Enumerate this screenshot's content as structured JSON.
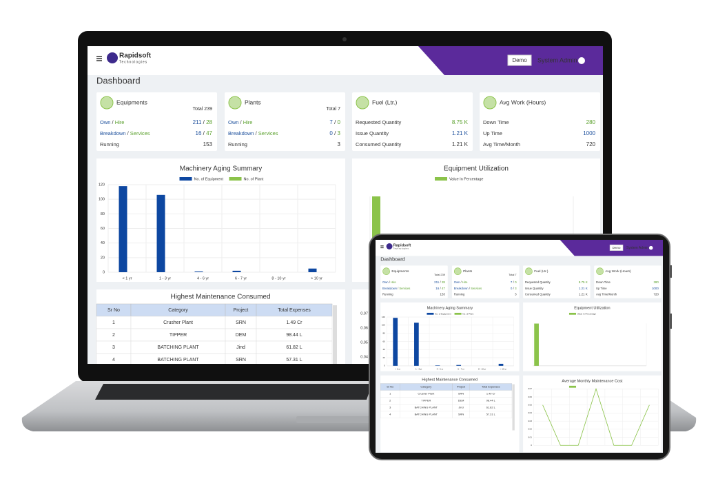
{
  "header": {
    "brand": "Rapidsoft",
    "brand_sub": "Technologies",
    "button": "Demo",
    "user": "System Admin"
  },
  "page_title": "Dashboard",
  "cards": [
    {
      "title": "Equipments",
      "total": "Total 239",
      "rows": [
        {
          "label": [
            "Own",
            " / ",
            "Hire"
          ],
          "value": [
            "211",
            " / ",
            "28"
          ]
        },
        {
          "label": [
            "Breakdown",
            " / ",
            "Services"
          ],
          "value": [
            "16",
            " / ",
            "47"
          ]
        },
        {
          "label": [
            "Running"
          ],
          "value": [
            "153"
          ]
        }
      ]
    },
    {
      "title": "Plants",
      "total": "Total 7",
      "rows": [
        {
          "label": [
            "Own",
            " / ",
            "Hire"
          ],
          "value": [
            "7",
            " / ",
            "0"
          ]
        },
        {
          "label": [
            "Breakdown",
            " / ",
            "Services"
          ],
          "value": [
            "0",
            " / ",
            "3"
          ]
        },
        {
          "label": [
            "Running"
          ],
          "value": [
            "3"
          ]
        }
      ]
    },
    {
      "title": "Fuel (Ltr.)",
      "rows": [
        {
          "label": [
            "Requested Quantity"
          ],
          "value": [
            "8.75 K"
          ]
        },
        {
          "label": [
            "Issue Quantity"
          ],
          "value": [
            "1.21 K"
          ]
        },
        {
          "label": [
            "Consumed Quantity"
          ],
          "value": [
            "1.21 K"
          ]
        }
      ]
    },
    {
      "title": "Avg Work (Hours)",
      "rows": [
        {
          "label": [
            "Down Time"
          ],
          "value": [
            "280"
          ]
        },
        {
          "label": [
            "Up Time"
          ],
          "value": [
            "1000"
          ]
        },
        {
          "label": [
            "Avg Time/Month"
          ],
          "value": [
            "720"
          ]
        }
      ]
    }
  ],
  "chart_data": [
    {
      "type": "bar",
      "title": "Machinery Aging Summary",
      "categories": [
        "< 1 yr",
        "1 - 3 yr",
        "4 - 6 yr",
        "6 - 7 yr",
        "8 - 10 yr",
        "> 10 yr"
      ],
      "series": [
        {
          "name": "No. of Equipment",
          "color": "#0d47a1",
          "values": [
            118,
            106,
            1,
            2,
            0,
            5
          ]
        },
        {
          "name": "No. of Plant",
          "color": "#8bc34a",
          "values": [
            0,
            0,
            0,
            0,
            0,
            0
          ]
        }
      ],
      "ylim": [
        0,
        120
      ],
      "yticks": [
        0,
        20,
        40,
        60,
        80,
        100,
        120
      ],
      "grid": true
    },
    {
      "type": "bar",
      "title": "Equipment Utilization",
      "categories": [
        null
      ],
      "series": [
        {
          "name": "Value In Percentage",
          "color": "#8bc34a",
          "values": [
            100
          ]
        }
      ],
      "ylim": [
        0,
        100
      ],
      "grid": true
    },
    {
      "type": "line",
      "title": "Average Monthly Maintenance Cost",
      "categories": [
        null,
        null,
        null,
        null,
        null,
        null,
        null
      ],
      "series": [
        {
          "color": "#8bc34a",
          "values": [
            0.05,
            0,
            0,
            0.07,
            0,
            0,
            0.05
          ]
        }
      ],
      "ylim": [
        0,
        0.07
      ],
      "yticks": [
        0,
        0.01,
        0.02,
        0.03,
        0.04,
        0.05,
        0.06,
        0.07
      ],
      "grid": true
    }
  ],
  "table": {
    "title": "Highest Maintenance Consumed",
    "columns": [
      "Sr No",
      "Category",
      "Project",
      "Total Expenses"
    ],
    "rows": [
      [
        "1",
        "Crusher Plant",
        "SRN",
        "1.49 Cr"
      ],
      [
        "2",
        "TIPPER",
        "DEM",
        "98.44 L"
      ],
      [
        "3",
        "BATCHING PLANT",
        "Jind",
        "61.82 L"
      ],
      [
        "4",
        "BATCHING PLANT",
        "SRN",
        "57.31 L"
      ]
    ]
  }
}
